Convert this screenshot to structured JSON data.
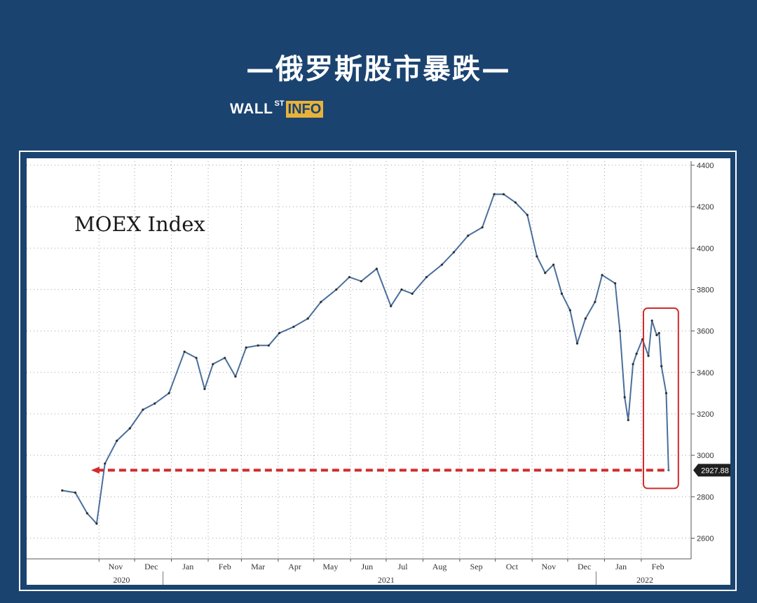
{
  "header": {
    "title": "—俄罗斯股市暴跌—",
    "logo_wall": "WALL",
    "logo_st": "ST",
    "logo_info": "INFO"
  },
  "colors": {
    "background": "#1a4370",
    "series": "#4a6f9b",
    "highlight": "#d22b2b",
    "logo_accent": "#e8b23a"
  },
  "chart_data": {
    "type": "line",
    "title": "MOEX Index",
    "ylim": [
      2500,
      4420
    ],
    "yticks": [
      2600,
      2800,
      3000,
      3200,
      3400,
      3600,
      3800,
      4000,
      4200,
      4400
    ],
    "grid": true,
    "month_labels": [
      "Nov",
      "Dec",
      "Jan",
      "Feb",
      "Mar",
      "Apr",
      "May",
      "Jun",
      "Jul",
      "Aug",
      "Sep",
      "Oct",
      "Nov",
      "Dec",
      "Jan",
      "Feb"
    ],
    "year_labels": [
      "2020",
      "2021",
      "2022"
    ],
    "last_value_label": "2927.88",
    "series": [
      {
        "x": [
          "2020-10-01",
          "2020-10-12",
          "2020-10-22",
          "2020-10-30",
          "2020-11-06",
          "2020-11-16",
          "2020-11-27",
          "2020-12-08",
          "2020-12-18",
          "2020-12-30",
          "2021-01-12",
          "2021-01-22",
          "2021-01-29",
          "2021-02-05",
          "2021-02-15",
          "2021-02-24",
          "2021-03-05",
          "2021-03-15",
          "2021-03-24",
          "2021-04-02",
          "2021-04-14",
          "2021-04-26",
          "2021-05-07",
          "2021-05-20",
          "2021-05-31",
          "2021-06-10",
          "2021-06-23",
          "2021-07-05",
          "2021-07-14",
          "2021-07-23",
          "2021-08-04",
          "2021-08-17",
          "2021-08-27",
          "2021-09-08",
          "2021-09-20",
          "2021-09-30",
          "2021-10-08",
          "2021-10-18",
          "2021-10-28",
          "2021-11-05",
          "2021-11-12",
          "2021-11-19",
          "2021-11-26",
          "2021-12-03",
          "2021-12-09",
          "2021-12-16",
          "2021-12-24",
          "2021-12-30",
          "2022-01-10",
          "2022-01-14",
          "2022-01-18",
          "2022-01-21",
          "2022-01-25",
          "2022-01-28",
          "2022-02-02",
          "2022-02-07",
          "2022-02-10",
          "2022-02-14",
          "2022-02-16",
          "2022-02-18",
          "2022-02-22",
          "2022-02-24"
        ],
        "values": [
          2830,
          2820,
          2720,
          2670,
          2960,
          3070,
          3130,
          3220,
          3250,
          3300,
          3500,
          3470,
          3320,
          3440,
          3470,
          3380,
          3520,
          3530,
          3530,
          3590,
          3620,
          3660,
          3740,
          3800,
          3860,
          3840,
          3900,
          3720,
          3800,
          3780,
          3860,
          3920,
          3980,
          4060,
          4100,
          4260,
          4260,
          4220,
          4160,
          3960,
          3880,
          3920,
          3780,
          3700,
          3540,
          3660,
          3740,
          3870,
          3830,
          3600,
          3280,
          3170,
          3440,
          3490,
          3560,
          3480,
          3650,
          3580,
          3590,
          3430,
          3300,
          2927.88
        ]
      }
    ]
  }
}
